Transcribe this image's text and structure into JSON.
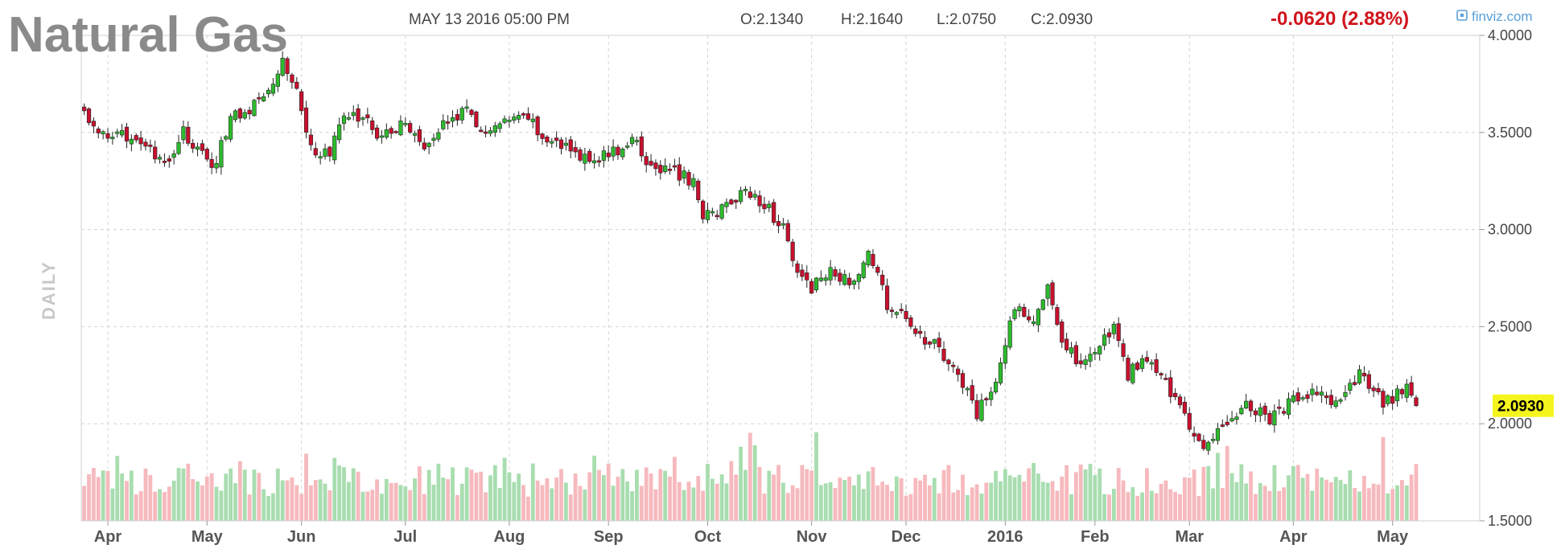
{
  "chart_data": {
    "type": "candlestick",
    "title": "Natural Gas",
    "timestamp": "MAY 13 2016 05:00 PM",
    "ohlc_summary": {
      "open": "O:2.1340",
      "high": "H:2.1640",
      "low": "L:2.0750",
      "close": "C:2.0930"
    },
    "change": "-0.0620 (2.88%)",
    "brand": "finviz.com",
    "brand_icon": "finviz-logo-icon",
    "period_label": "DAILY",
    "last_price_label": "2.0930",
    "last_price": 2.093,
    "ylim": [
      1.5,
      4.0
    ],
    "y_ticks": [
      "1.5000",
      "2.0000",
      "2.5000",
      "3.0000",
      "3.5000",
      "4.0000"
    ],
    "y_tick_values": [
      1.5,
      2.0,
      2.5,
      3.0,
      3.5,
      4.0
    ],
    "x_labels": [
      "Apr",
      "May",
      "Jun",
      "Jul",
      "Aug",
      "Sep",
      "Oct",
      "Nov",
      "Dec",
      "2016",
      "Feb",
      "Mar",
      "Apr",
      "May"
    ],
    "x_label_bar_index": [
      0,
      21,
      41,
      63,
      85,
      106,
      127,
      149,
      169,
      190,
      209,
      229,
      251,
      272
    ],
    "close_anchors": [
      [
        -5,
        3.6
      ],
      [
        0,
        3.45
      ],
      [
        5,
        3.5
      ],
      [
        12,
        3.32
      ],
      [
        16,
        3.5
      ],
      [
        20,
        3.38
      ],
      [
        22,
        3.3
      ],
      [
        26,
        3.58
      ],
      [
        30,
        3.62
      ],
      [
        35,
        3.78
      ],
      [
        37,
        3.87
      ],
      [
        40,
        3.72
      ],
      [
        43,
        3.42
      ],
      [
        47,
        3.38
      ],
      [
        50,
        3.6
      ],
      [
        55,
        3.55
      ],
      [
        58,
        3.48
      ],
      [
        63,
        3.55
      ],
      [
        68,
        3.42
      ],
      [
        72,
        3.58
      ],
      [
        76,
        3.6
      ],
      [
        80,
        3.5
      ],
      [
        85,
        3.55
      ],
      [
        89,
        3.58
      ],
      [
        91,
        3.5
      ],
      [
        95,
        3.44
      ],
      [
        100,
        3.38
      ],
      [
        106,
        3.38
      ],
      [
        111,
        3.46
      ],
      [
        115,
        3.32
      ],
      [
        120,
        3.3
      ],
      [
        124,
        3.24
      ],
      [
        126,
        3.08
      ],
      [
        130,
        3.1
      ],
      [
        135,
        3.2
      ],
      [
        139,
        3.14
      ],
      [
        143,
        3.0
      ],
      [
        145,
        2.82
      ],
      [
        149,
        2.7
      ],
      [
        153,
        2.78
      ],
      [
        157,
        2.72
      ],
      [
        161,
        2.88
      ],
      [
        165,
        2.62
      ],
      [
        170,
        2.5
      ],
      [
        175,
        2.4
      ],
      [
        180,
        2.25
      ],
      [
        184,
        2.05
      ],
      [
        188,
        2.22
      ],
      [
        192,
        2.6
      ],
      [
        196,
        2.55
      ],
      [
        199,
        2.72
      ],
      [
        202,
        2.45
      ],
      [
        205,
        2.32
      ],
      [
        209,
        2.38
      ],
      [
        213,
        2.48
      ],
      [
        216,
        2.25
      ],
      [
        220,
        2.35
      ],
      [
        224,
        2.2
      ],
      [
        228,
        2.05
      ],
      [
        232,
        1.85
      ],
      [
        236,
        1.98
      ],
      [
        241,
        2.12
      ],
      [
        246,
        2.02
      ],
      [
        251,
        2.12
      ],
      [
        256,
        2.15
      ],
      [
        261,
        2.1
      ],
      [
        265,
        2.25
      ],
      [
        270,
        2.1
      ],
      [
        275,
        2.18
      ],
      [
        277,
        2.093
      ]
    ],
    "close_series_note": "",
    "volume_relative_note": ""
  }
}
